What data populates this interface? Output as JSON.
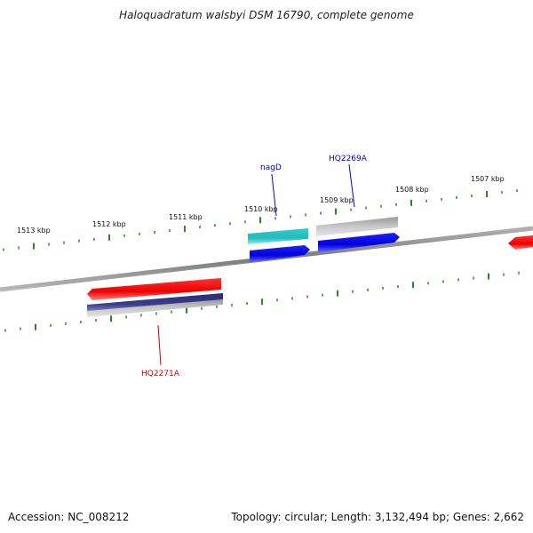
{
  "title": "Haloquadratum walsbyi DSM 16790, complete genome",
  "footer": {
    "accession": "Accession: NC_008212",
    "topology": "Topology: circular; Length: 3,132,494 bp; Genes: 2,662"
  },
  "ticks": [
    {
      "label": "1513 kbp"
    },
    {
      "label": "1512 kbp"
    },
    {
      "label": "1511 kbp"
    },
    {
      "label": "1510 kbp"
    },
    {
      "label": "1509 kbp"
    },
    {
      "label": "1508 kbp"
    },
    {
      "label": "1507 kbp"
    }
  ],
  "genes": [
    {
      "name": "nagD",
      "color": "#0000cc"
    },
    {
      "name": "HQ2269A",
      "color": "#0000cc"
    },
    {
      "name": "HQ2271A",
      "color": "#cc0000"
    }
  ],
  "colors": {
    "backbone": "#808080",
    "tick": "#228b22",
    "forward_cds": "#0000ee",
    "reverse_cds": "#ee0000",
    "rna": "#22cccc",
    "pseudo": "#bfbfbf",
    "purple": "#3c3c8c"
  }
}
